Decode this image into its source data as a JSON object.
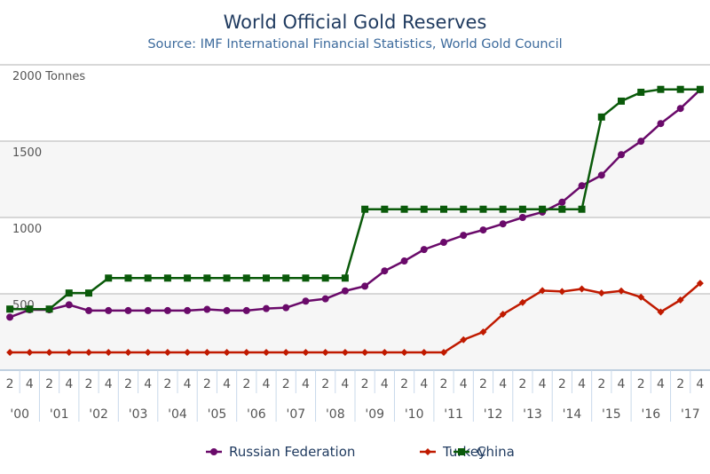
{
  "chart_data": {
    "type": "line",
    "title": "World Official Gold Reserves",
    "subtitle": "Source: IMF International Financial Statistics, World Gold Council",
    "ylabel": "Tonnes",
    "ylim": [
      0,
      2000
    ],
    "yticks": [
      {
        "value": 500,
        "label": "500"
      },
      {
        "value": 1000,
        "label": "1000"
      },
      {
        "value": 1500,
        "label": "1500"
      },
      {
        "value": 2000,
        "label": "2000 Tonnes"
      }
    ],
    "quarter_labels": [
      "2",
      "4"
    ],
    "years": [
      "'00",
      "'01",
      "'02",
      "'03",
      "'04",
      "'05",
      "'06",
      "'07",
      "'08",
      "'09",
      "'10",
      "'11",
      "'12",
      "'13",
      "'14",
      "'15",
      "'16",
      "'17"
    ],
    "legend_position": "bottom",
    "series": [
      {
        "name": "Russian Federation",
        "color": "#6a0a6a",
        "marker": "circle",
        "values": [
          347,
          395,
          395,
          428,
          390,
          390,
          390,
          390,
          390,
          390,
          398,
          390,
          390,
          403,
          409,
          452,
          467,
          519,
          550,
          650,
          715,
          790,
          837,
          883,
          918,
          958,
          1000,
          1035,
          1100,
          1208,
          1277,
          1411,
          1499,
          1615,
          1714,
          1836
        ]
      },
      {
        "name": "Turkey",
        "color": "#c01a00",
        "marker": "diamond",
        "values": [
          116,
          116,
          116,
          116,
          116,
          116,
          116,
          116,
          116,
          116,
          116,
          116,
          116,
          116,
          116,
          116,
          116,
          116,
          116,
          116,
          116,
          116,
          116,
          199,
          250,
          366,
          443,
          521,
          515,
          532,
          505,
          519,
          478,
          381,
          459,
          569
        ]
      },
      {
        "name": "China",
        "color": "#0a5a0a",
        "marker": "square",
        "values": [
          400,
          400,
          400,
          505,
          505,
          603,
          603,
          603,
          603,
          603,
          603,
          603,
          603,
          603,
          603,
          603,
          603,
          603,
          1054,
          1054,
          1054,
          1054,
          1054,
          1054,
          1054,
          1054,
          1054,
          1054,
          1054,
          1054,
          1658,
          1762,
          1820,
          1839,
          1839,
          1839
        ]
      }
    ]
  }
}
